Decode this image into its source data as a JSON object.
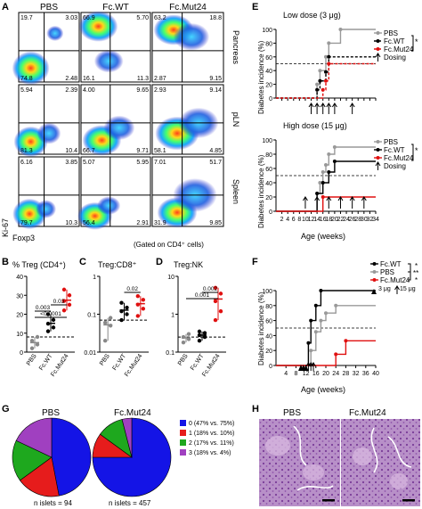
{
  "panel_labels": [
    "A",
    "B",
    "C",
    "D",
    "E",
    "F",
    "G",
    "H"
  ],
  "panel_a": {
    "columns": [
      "PBS",
      "Fc.WT",
      "Fc.Mut24"
    ],
    "rows": [
      "Pancreas",
      "pLN",
      "Spleen"
    ],
    "quadrants": [
      [
        [
          "19.7",
          "3.03",
          "74.8",
          "2.48"
        ],
        [
          "66.9",
          "5.70",
          "16.1",
          "11.3"
        ],
        [
          "63.2",
          "18.8",
          "2.87",
          "9.15"
        ]
      ],
      [
        [
          "5.94",
          "2.39",
          "81.3",
          "10.4"
        ],
        [
          "4.00",
          "9.65",
          "66.7",
          "9.71"
        ],
        [
          "2.93",
          "9.14",
          "58.1",
          "4.85"
        ]
      ],
      [
        [
          "6.16",
          "3.85",
          "79.7",
          "10.3"
        ],
        [
          "5.07",
          "5.95",
          "56.4",
          "2.91"
        ],
        [
          "7.01",
          "51.7",
          "31.9",
          "9.85"
        ]
      ]
    ],
    "y_axis_label": "Ki-67",
    "x_axis_label": "Foxp3",
    "gating_note": "(Gated on CD4⁺ cells)"
  },
  "panel_b": {
    "title": "% Treg (CD4⁺)",
    "groups": [
      "PBS",
      "Fc.WT",
      "Fc.Mut24"
    ],
    "pvalues": [
      "<0.0001",
      "0.003",
      "0.03"
    ]
  },
  "panel_c": {
    "title": "Treg:CD8⁺",
    "groups": [
      "PBS",
      "Fc.WT",
      "Fc.Mut24"
    ],
    "yticks": [
      "1",
      "0.1",
      "0.01"
    ],
    "pvalues": [
      "0.02"
    ]
  },
  "panel_d": {
    "title": "Treg:NK",
    "groups": [
      "PBS",
      "Fc.WT",
      "Fc.Mut24"
    ],
    "yticks": [
      "10",
      "1",
      "0.1"
    ],
    "pvalues": [
      "0.001",
      "0.002"
    ]
  },
  "panel_e": {
    "low_title": "Low dose (3 μg)",
    "high_title": "High dose (15 μg)",
    "ylabel": "Diabetes incidence (%)",
    "xlabel": "Age (weeks)",
    "legend": [
      "PBS",
      "Fc.WT",
      "Fc.Mut24",
      "Dosing"
    ],
    "significance": "*"
  },
  "panel_f": {
    "ylabel": "Diabetes incidence (%)",
    "xlabel": "Age (weeks)",
    "legend": [
      "Fc.WT",
      "PBS",
      "Fc.Mut24"
    ],
    "dose_legend": [
      "3 μg",
      "15 μg"
    ],
    "significance": [
      "*",
      "**",
      "*"
    ]
  },
  "panel_g": {
    "pie_titles": [
      "PBS",
      "Fc.Mut24"
    ],
    "n_labels": [
      "n islets = 94",
      "n islets = 457"
    ],
    "legend": [
      "0 (47% vs. 75%)",
      "1 (18% vs. 10%)",
      "2 (17% vs. 11%)",
      "3 (18% vs. 4%)"
    ],
    "colors": [
      "#1414e6",
      "#e61c1c",
      "#1ea81e",
      "#a040c0"
    ]
  },
  "panel_h": {
    "titles": [
      "PBS",
      "Fc.Mut24"
    ]
  },
  "chart_data": [
    {
      "type": "scatter",
      "title": "% Treg (CD4⁺)",
      "categories": [
        "PBS",
        "Fc.WT",
        "Fc.Mut24"
      ],
      "series": [
        {
          "values": [
            [
              2,
              4,
              6,
              8
            ],
            [
              11,
              13,
              15,
              17,
              20
            ],
            [
              22,
              25,
              27,
              30,
              33
            ]
          ]
        }
      ],
      "ylim": [
        0,
        40
      ]
    },
    {
      "type": "scatter",
      "title": "Treg:CD8⁺",
      "categories": [
        "PBS",
        "Fc.WT",
        "Fc.Mut24"
      ],
      "series": [
        {
          "values": [
            [
              0.02,
              0.05,
              0.06,
              0.08
            ],
            [
              0.07,
              0.1,
              0.12,
              0.15,
              0.2
            ],
            [
              0.09,
              0.14,
              0.18,
              0.24,
              0.3
            ]
          ]
        }
      ],
      "ylim": [
        0.01,
        1
      ],
      "scale": "log"
    },
    {
      "type": "scatter",
      "title": "Treg:NK",
      "categories": [
        "PBS",
        "Fc.WT",
        "Fc.Mut24"
      ],
      "series": [
        {
          "values": [
            [
              0.18,
              0.22,
              0.25,
              0.3
            ],
            [
              0.2,
              0.25,
              0.28,
              0.32,
              0.35
            ],
            [
              0.7,
              1.2,
              2.2,
              3.5,
              5.0
            ]
          ]
        }
      ],
      "ylim": [
        0.1,
        10
      ],
      "scale": "log"
    },
    {
      "type": "line",
      "title": "Low dose (3 μg)",
      "xlabel": "Age (weeks)",
      "ylabel": "Diabetes incidence (%)",
      "xlim": [
        0,
        34
      ],
      "ylim": [
        0,
        100
      ],
      "xticks": [
        2,
        4,
        6,
        8,
        10,
        12,
        14,
        16,
        18,
        20,
        22,
        24,
        26,
        28,
        30,
        32,
        34
      ],
      "dosing_weeks": [
        12,
        14,
        16,
        18,
        20,
        26
      ],
      "series": [
        {
          "name": "PBS",
          "x": [
            0,
            13,
            14,
            15,
            17,
            18,
            20,
            22,
            34
          ],
          "y": [
            0,
            0,
            20,
            40,
            60,
            80,
            80,
            100,
            100
          ]
        },
        {
          "name": "Fc.WT",
          "x": [
            0,
            13,
            14,
            15,
            17,
            18,
            34
          ],
          "y": [
            0,
            0,
            12,
            25,
            38,
            60,
            60
          ]
        },
        {
          "name": "Fc.Mut24",
          "x": [
            0,
            15,
            16,
            17,
            18,
            34
          ],
          "y": [
            0,
            0,
            12,
            25,
            50,
            50
          ]
        }
      ]
    },
    {
      "type": "line",
      "title": "High dose (15 μg)",
      "xlabel": "Age (weeks)",
      "ylabel": "Diabetes incidence (%)",
      "xlim": [
        0,
        34
      ],
      "ylim": [
        0,
        100
      ],
      "xticks": [
        2,
        4,
        6,
        8,
        10,
        12,
        14,
        16,
        18,
        20,
        22,
        24,
        26,
        28,
        30,
        32,
        34
      ],
      "dosing_weeks": [
        10,
        14,
        18,
        22,
        26,
        30
      ],
      "series": [
        {
          "name": "PBS",
          "x": [
            0,
            13,
            14,
            15,
            16,
            17,
            18,
            20,
            34
          ],
          "y": [
            0,
            0,
            25,
            40,
            55,
            65,
            80,
            90,
            90
          ]
        },
        {
          "name": "Fc.WT",
          "x": [
            0,
            13,
            14,
            16,
            18,
            20,
            34
          ],
          "y": [
            0,
            0,
            25,
            40,
            55,
            70,
            70
          ]
        },
        {
          "name": "Fc.Mut24",
          "x": [
            0,
            14,
            16,
            34
          ],
          "y": [
            0,
            0,
            20,
            20
          ]
        }
      ]
    },
    {
      "type": "line",
      "xlabel": "Age (weeks)",
      "ylabel": "Diabetes incidence (%)",
      "xlim": [
        0,
        40
      ],
      "ylim": [
        0,
        100
      ],
      "xticks": [
        4,
        8,
        12,
        16,
        20,
        24,
        28,
        32,
        36,
        40
      ],
      "dose_3ug_weeks": [
        10,
        11,
        12
      ],
      "dose_15ug_weeks": [
        13,
        14,
        15
      ],
      "series": [
        {
          "name": "Fc.WT",
          "x": [
            0,
            12,
            13,
            14,
            16,
            18,
            40
          ],
          "y": [
            0,
            0,
            30,
            60,
            80,
            100,
            100
          ]
        },
        {
          "name": "PBS",
          "x": [
            0,
            13,
            14,
            16,
            18,
            20,
            24,
            40
          ],
          "y": [
            0,
            0,
            20,
            45,
            60,
            70,
            80,
            80
          ]
        },
        {
          "name": "Fc.Mut24",
          "x": [
            0,
            22,
            24,
            28,
            40
          ],
          "y": [
            0,
            0,
            15,
            33,
            33
          ]
        }
      ]
    },
    {
      "type": "pie",
      "title": "PBS",
      "labels": [
        "0",
        "1",
        "2",
        "3"
      ],
      "values": [
        47,
        18,
        17,
        18
      ]
    },
    {
      "type": "pie",
      "title": "Fc.Mut24",
      "labels": [
        "0",
        "1",
        "2",
        "3"
      ],
      "values": [
        75,
        10,
        11,
        4
      ]
    }
  ]
}
